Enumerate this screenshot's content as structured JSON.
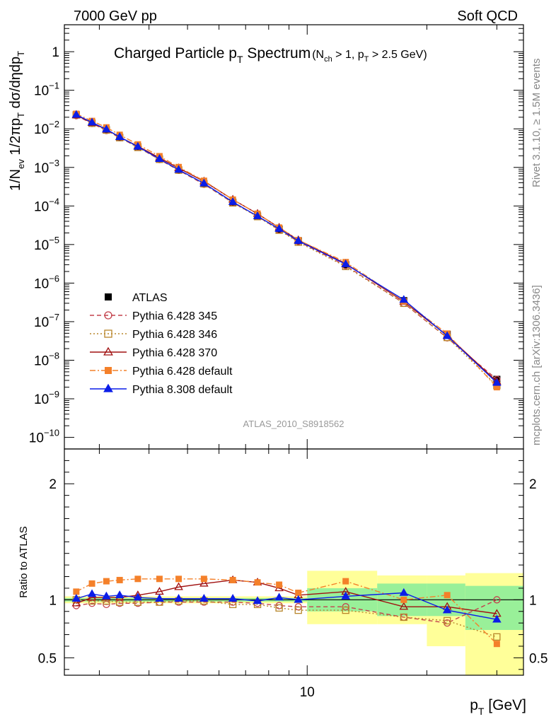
{
  "header": {
    "left": "7000 GeV pp",
    "right": "Soft QCD"
  },
  "side_labels": {
    "rivet": "Rivet 3.1.10, ≥ 1.5M events",
    "mcplots": "mcplots.cern.ch [arXiv:1306.3436]"
  },
  "analysis_id": "ATLAS_2010_S8918562",
  "chart_data": [
    {
      "type": "line",
      "panel": "main",
      "title": "Charged Particle pT Spectrum",
      "title_parts": {
        "main": "Charged Particle p",
        "main_sub": "T",
        "main_tail": " Spectrum",
        "cut_open": "(N",
        "cut_open_sub": "ch",
        "cut_mid": " > 1, p",
        "cut_mid_sub": "T",
        "cut_tail": " > 2.5 GeV)"
      },
      "ylabel": "1/Nev 1/2πpT dσ/dηdpT",
      "ylabel_parts": {
        "a": "1/N",
        "a_sub": "ev",
        "b": " 1/2πp",
        "b_sub": "T",
        "c": " dσ/dηdp",
        "c_sub": "T"
      },
      "yscale": "log",
      "xscale": "log",
      "xlim": [
        2.45,
        35
      ],
      "ylim": [
        5e-11,
        5
      ],
      "yticks": [
        {
          "v": 1,
          "m": "1",
          "e": ""
        },
        {
          "v": 0.1,
          "m": "10",
          "e": "−1"
        },
        {
          "v": 0.01,
          "m": "10",
          "e": "−2"
        },
        {
          "v": 0.001,
          "m": "10",
          "e": "−3"
        },
        {
          "v": 0.0001,
          "m": "10",
          "e": "−4"
        },
        {
          "v": 1e-05,
          "m": "10",
          "e": "−5"
        },
        {
          "v": 1e-06,
          "m": "10",
          "e": "−6"
        },
        {
          "v": 1e-07,
          "m": "10",
          "e": "−7"
        },
        {
          "v": 1e-08,
          "m": "10",
          "e": "−8"
        },
        {
          "v": 1e-09,
          "m": "10",
          "e": "−9"
        },
        {
          "v": 1e-10,
          "m": "10",
          "e": "−10"
        }
      ],
      "x": [
        2.625,
        2.875,
        3.125,
        3.375,
        3.75,
        4.25,
        4.75,
        5.5,
        6.5,
        7.5,
        8.5,
        9.5,
        12.5,
        17.5,
        22.5,
        30.0
      ],
      "series": [
        {
          "name": "ATLAS",
          "color": "#000000",
          "marker": "square-filled",
          "line": "none",
          "values": [
            0.023,
            0.014,
            0.0094,
            0.006,
            0.0034,
            0.00165,
            0.00086,
            0.00038,
            0.000125,
            5.5e-05,
            2.5e-05,
            1.25e-05,
            3e-06,
            3.5e-07,
            4.7e-08,
            3.2e-09
          ]
        },
        {
          "name": "Pythia 6.428 345",
          "color": "#c3424c",
          "marker": "circle-open",
          "line": "dashed",
          "values": [
            0.022,
            0.0138,
            0.0091,
            0.0059,
            0.00335,
            0.0016,
            0.00084,
            0.000365,
            0.000122,
            5.4e-05,
            2.4e-05,
            1.2e-05,
            2.85e-06,
            3e-07,
            3.8e-08,
            3.2e-09
          ]
        },
        {
          "name": "Pythia 6.428 346",
          "color": "#b8862b",
          "marker": "square-open",
          "line": "dotted",
          "values": [
            0.023,
            0.014,
            0.0093,
            0.0059,
            0.0033,
            0.00162,
            0.00085,
            0.000375,
            0.00012,
            5.3e-05,
            2.35e-05,
            1.15e-05,
            2.7e-06,
            3e-07,
            3.9e-08,
            2.2e-09
          ]
        },
        {
          "name": "Pythia 6.428 370",
          "color": "#a01010",
          "marker": "triangle-open",
          "line": "solid",
          "values": [
            0.0225,
            0.0143,
            0.0096,
            0.0061,
            0.00355,
            0.00177,
            0.00096,
            0.000435,
            0.000147,
            6.3e-05,
            2.75e-05,
            1.3e-05,
            3.2e-06,
            3.3e-07,
            4.4e-08,
            2.8e-09
          ]
        },
        {
          "name": "Pythia 6.428 default",
          "color": "#f4802a",
          "marker": "square-filled",
          "line": "dashdot",
          "values": [
            0.0245,
            0.016,
            0.0109,
            0.007,
            0.00395,
            0.00195,
            0.00102,
            0.00045,
            0.000146,
            6.3e-05,
            2.75e-05,
            1.3e-05,
            3.5e-06,
            3.4e-07,
            4.9e-08,
            2e-09
          ]
        },
        {
          "name": "Pythia 8.308 default",
          "color": "#0b1de8",
          "marker": "triangle-filled",
          "line": "solid",
          "values": [
            0.0232,
            0.0147,
            0.0097,
            0.00615,
            0.00345,
            0.00166,
            0.00087,
            0.000385,
            0.000127,
            5.45e-05,
            2.55e-05,
            1.25e-05,
            3.1e-06,
            3.7e-07,
            4.25e-08,
            2.6e-09
          ]
        }
      ]
    },
    {
      "type": "line",
      "panel": "ratio",
      "ylabel": "Ratio to ATLAS",
      "xlabel": "pT [GeV]",
      "xlabel_parts": {
        "a": "p",
        "a_sub": "T",
        "b": "  [GeV]"
      },
      "xscale": "log",
      "yscale": "linear",
      "xlim": [
        2.45,
        35
      ],
      "ylim": [
        0.35,
        2.3
      ],
      "yticks": [
        {
          "v": 0.5,
          "t": "0.5"
        },
        {
          "v": 1,
          "t": "1"
        },
        {
          "v": 2,
          "t": "2"
        }
      ],
      "xticks": [
        {
          "v": 10,
          "t": "10"
        }
      ],
      "reference_line": 1,
      "uncertainty_bands": [
        {
          "x": [
            2.45,
            10
          ],
          "stat": [
            0.985,
            1.015
          ],
          "total": [
            0.97,
            1.03
          ]
        },
        {
          "x": [
            10,
            15
          ],
          "stat": [
            0.9,
            1.1
          ],
          "total": [
            0.79,
            1.25
          ]
        },
        {
          "x": [
            15,
            20
          ],
          "stat": [
            0.86,
            1.14
          ],
          "total": [
            0.79,
            1.21
          ]
        },
        {
          "x": [
            20,
            25
          ],
          "stat": [
            0.86,
            1.14
          ],
          "total": [
            0.6,
            1.21
          ]
        },
        {
          "x": [
            25,
            35
          ],
          "stat": [
            0.74,
            1.12
          ],
          "total": [
            0.35,
            1.23
          ]
        }
      ],
      "x": [
        2.625,
        2.875,
        3.125,
        3.375,
        3.75,
        4.25,
        4.75,
        5.5,
        6.5,
        7.5,
        8.5,
        9.5,
        12.5,
        17.5,
        22.5,
        30.0
      ],
      "series": [
        {
          "name": "Pythia 6.428 345",
          "color": "#c3424c",
          "marker": "circle-open",
          "line": "dashed",
          "values": [
            0.95,
            0.97,
            0.96,
            0.97,
            0.97,
            0.98,
            0.98,
            0.98,
            0.98,
            0.97,
            0.95,
            0.94,
            0.94,
            0.85,
            0.8,
            1.0
          ]
        },
        {
          "name": "Pythia 6.428 346",
          "color": "#b8862b",
          "marker": "square-open",
          "line": "dotted",
          "values": [
            1.0,
            0.99,
            0.99,
            0.98,
            0.98,
            0.98,
            0.99,
            0.99,
            0.96,
            0.96,
            0.93,
            0.91,
            0.91,
            0.85,
            0.82,
            0.68
          ]
        },
        {
          "name": "Pythia 6.428 370",
          "color": "#a01010",
          "marker": "triangle-open",
          "line": "solid",
          "values": [
            0.97,
            1.02,
            1.02,
            1.02,
            1.04,
            1.07,
            1.11,
            1.14,
            1.17,
            1.15,
            1.1,
            1.04,
            1.07,
            0.94,
            0.94,
            0.88
          ]
        },
        {
          "name": "Pythia 6.428 default",
          "color": "#f4802a",
          "marker": "square-filled",
          "line": "dashdot",
          "values": [
            1.07,
            1.14,
            1.16,
            1.17,
            1.18,
            1.18,
            1.18,
            1.18,
            1.17,
            1.15,
            1.13,
            1.06,
            1.16,
            1.0,
            1.04,
            0.62
          ]
        },
        {
          "name": "Pythia 8.308 default",
          "color": "#0b1de8",
          "marker": "triangle-filled",
          "line": "solid",
          "values": [
            1.01,
            1.05,
            1.03,
            1.04,
            1.02,
            1.01,
            1.01,
            1.01,
            1.01,
            0.99,
            1.02,
            1.0,
            1.03,
            1.06,
            0.91,
            0.83
          ]
        }
      ]
    }
  ]
}
